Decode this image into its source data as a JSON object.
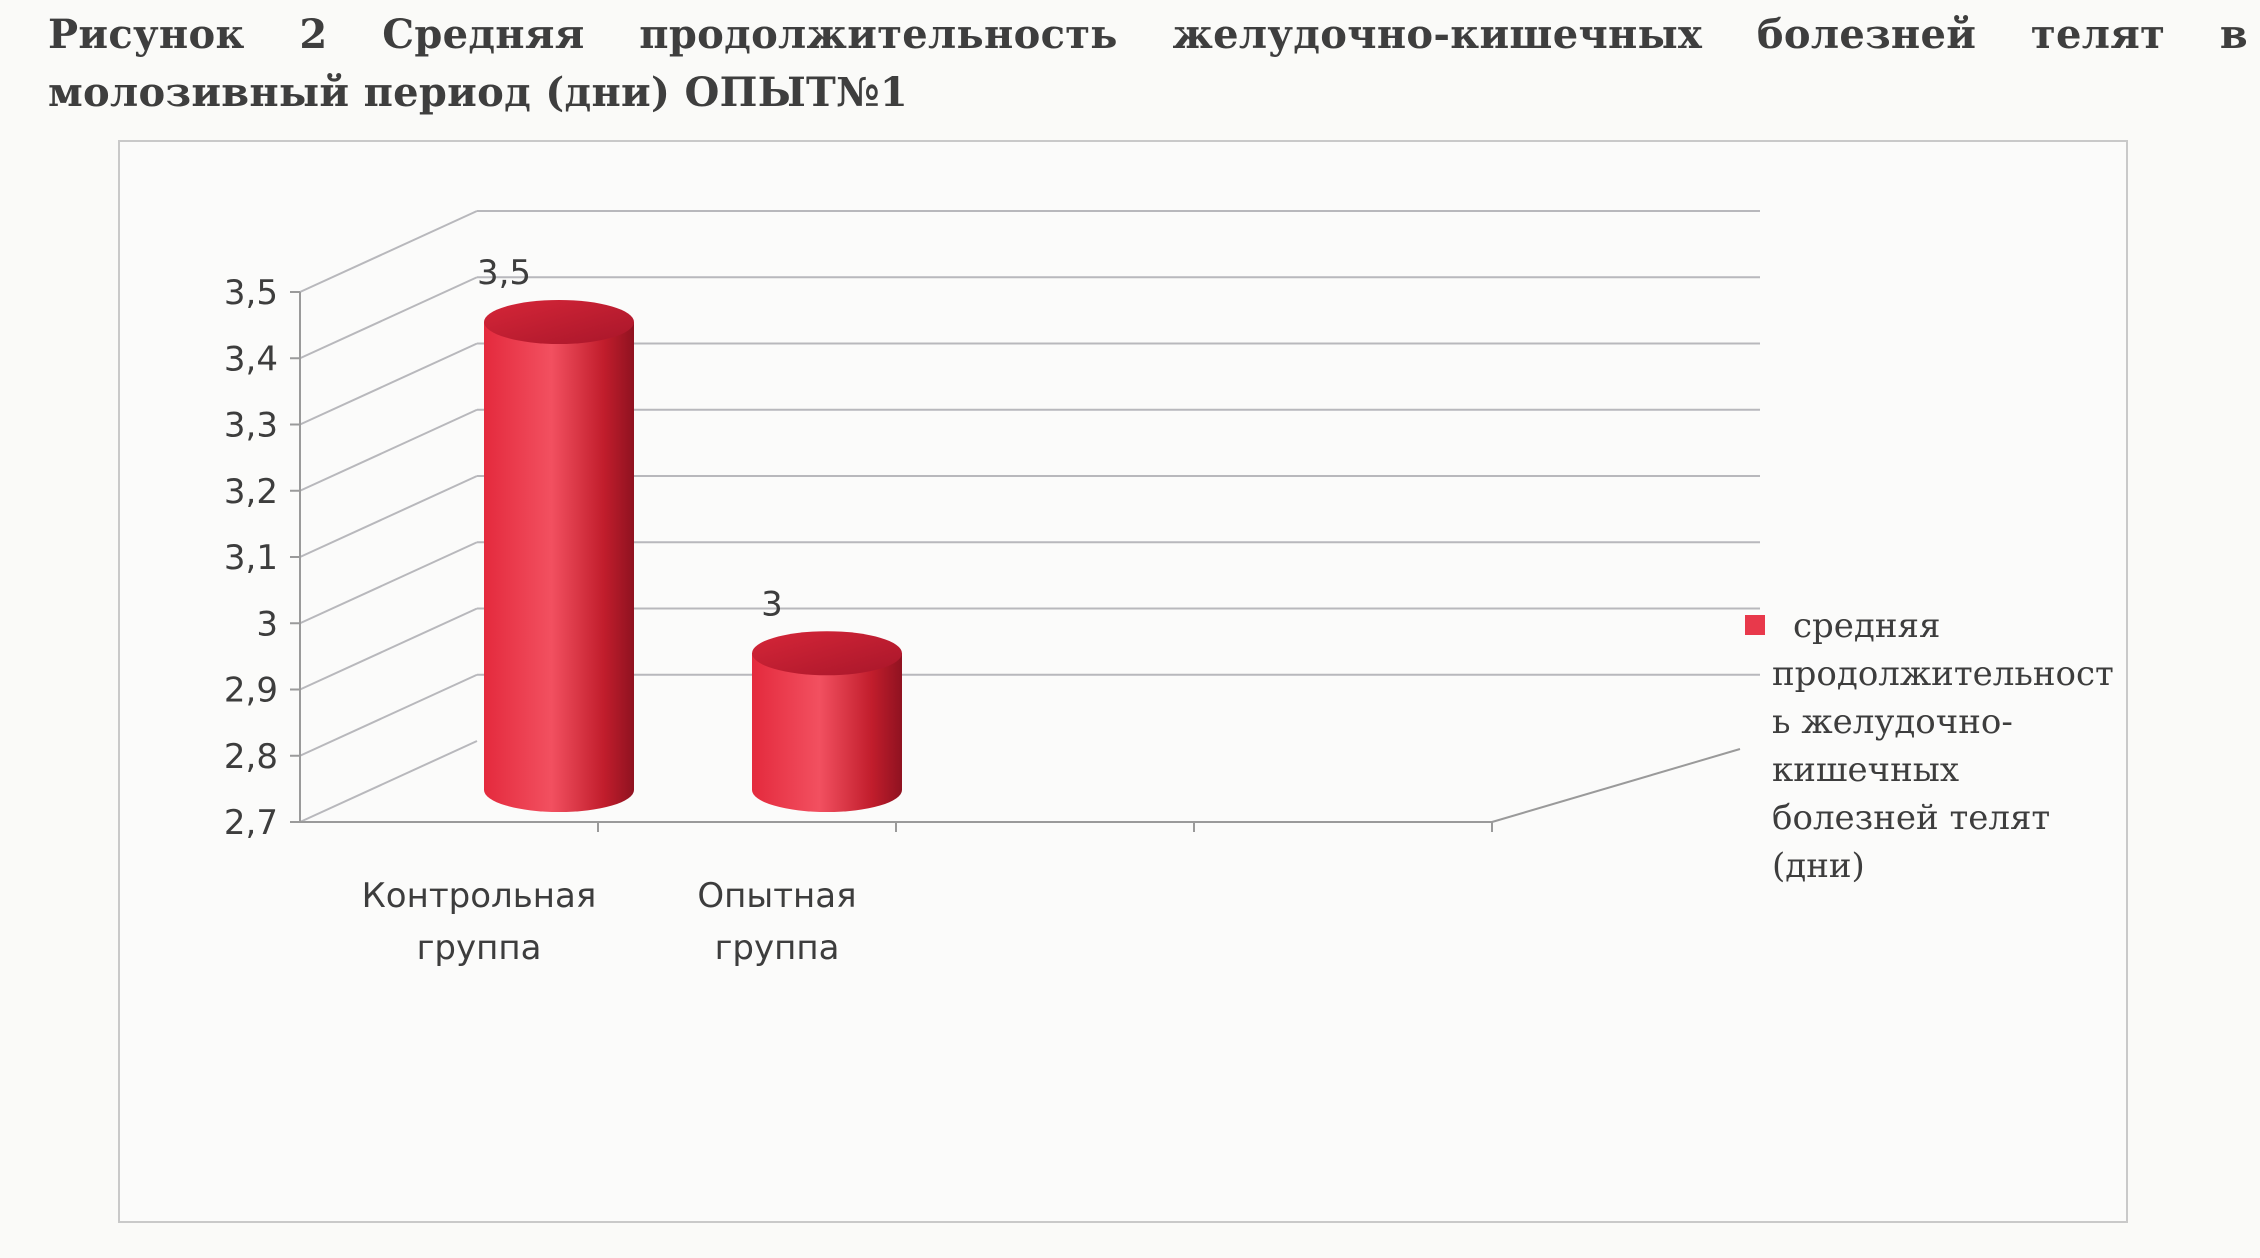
{
  "caption": "Рисунок 2 Средняя продолжительность желудочно-кишечных болезней телят в молозивный период (дни) ОПЫТ№1",
  "chart_data": {
    "type": "bar",
    "style": "3d-cylinder",
    "categories": [
      [
        "Контрольная",
        "группа"
      ],
      [
        "Опытная",
        "группа"
      ]
    ],
    "series": [
      {
        "name": [
          "средняя",
          "продолжительност",
          "ь желудочно-",
          "кишечных",
          "болезней телят",
          "(дни)"
        ],
        "values": [
          3.5,
          3
        ],
        "data_labels": [
          "3,5",
          "3"
        ],
        "color": "#e8394b"
      }
    ],
    "y_ticks": [
      "2,7",
      "2,8",
      "2,9",
      "3",
      "3,1",
      "3,2",
      "3,3",
      "3,4",
      "3,5"
    ],
    "ylim": [
      2.7,
      3.5
    ],
    "grid": true,
    "legend_position": "right"
  }
}
